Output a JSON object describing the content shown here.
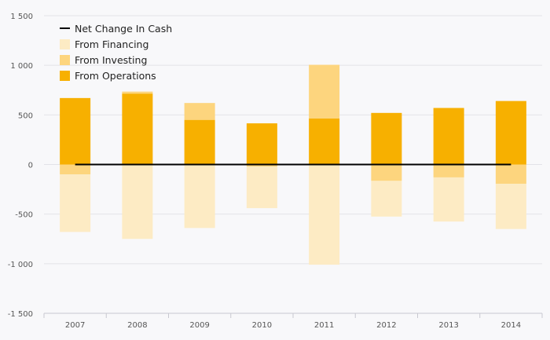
{
  "chart_data": {
    "type": "bar",
    "stacked": true,
    "categories": [
      "2007",
      "2008",
      "2009",
      "2010",
      "2011",
      "2012",
      "2013",
      "2014"
    ],
    "series": [
      {
        "name": "From Operations",
        "color": "#f7b000",
        "values": [
          670,
          715,
          450,
          415,
          465,
          520,
          570,
          640
        ]
      },
      {
        "name": "From Investing",
        "color": "#fdd57e",
        "values": [
          -100,
          20,
          170,
          -20,
          540,
          -165,
          -130,
          -195
        ]
      },
      {
        "name": "From Financing",
        "color": "#fdebc4",
        "values": [
          -580,
          -750,
          -640,
          -420,
          -1010,
          -360,
          -445,
          -455
        ]
      }
    ],
    "line": {
      "name": "Net Change In Cash",
      "color": "#000000",
      "values": [
        0,
        0,
        0,
        0,
        0,
        0,
        0,
        0
      ]
    },
    "y_ticks": [
      "1 500",
      "1 000",
      "500",
      "0",
      "-500",
      "-1 000",
      "-1 500"
    ],
    "ylim": [
      -1500,
      1500
    ],
    "grid": true,
    "legend_position": "top-left",
    "title": "",
    "xlabel": "",
    "ylabel": ""
  },
  "legend": {
    "line_label": "Net Change In Cash",
    "financing_label": "From Financing",
    "investing_label": "From Investing",
    "operations_label": "From Operations"
  }
}
